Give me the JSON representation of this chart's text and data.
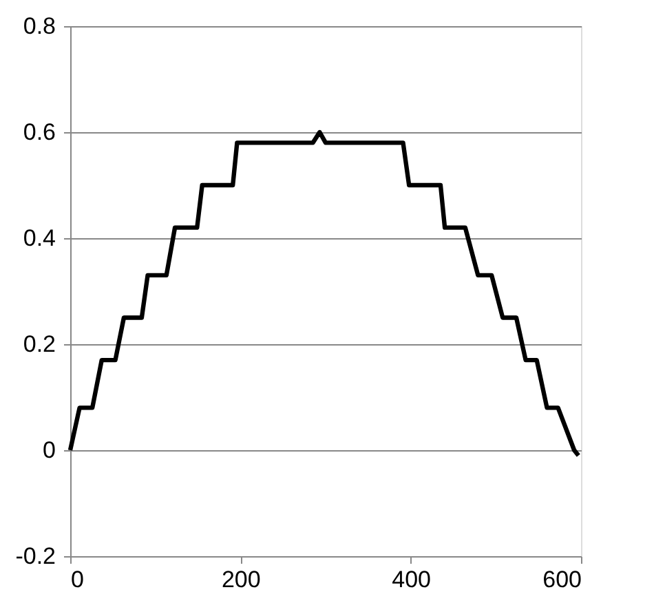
{
  "chart_data": {
    "type": "line",
    "x": [
      0,
      11,
      26,
      37,
      53,
      63,
      84,
      91,
      113,
      123,
      149,
      155,
      191,
      196,
      285,
      293,
      300,
      391,
      398,
      435,
      440,
      464,
      479,
      495,
      508,
      524,
      535,
      548,
      560,
      573,
      592,
      597
    ],
    "series": [
      {
        "color": "#000000",
        "values": [
          0,
          0.08,
          0.08,
          0.17,
          0.17,
          0.25,
          0.25,
          0.33,
          0.33,
          0.42,
          0.42,
          0.5,
          0.5,
          0.58,
          0.58,
          0.6,
          0.58,
          0.58,
          0.5,
          0.5,
          0.42,
          0.42,
          0.33,
          0.33,
          0.25,
          0.25,
          0.17,
          0.17,
          0.08,
          0.08,
          0,
          -0.01
        ]
      }
    ],
    "xlim": [
      0,
      600
    ],
    "xticks": [
      0,
      200,
      400,
      600
    ],
    "ylim": [
      -0.2,
      0.8
    ],
    "yticks": [
      -0.2,
      0,
      0.2,
      0.4,
      0.6,
      0.8
    ],
    "grid": "y",
    "marker": "none",
    "line_style": "solid"
  }
}
